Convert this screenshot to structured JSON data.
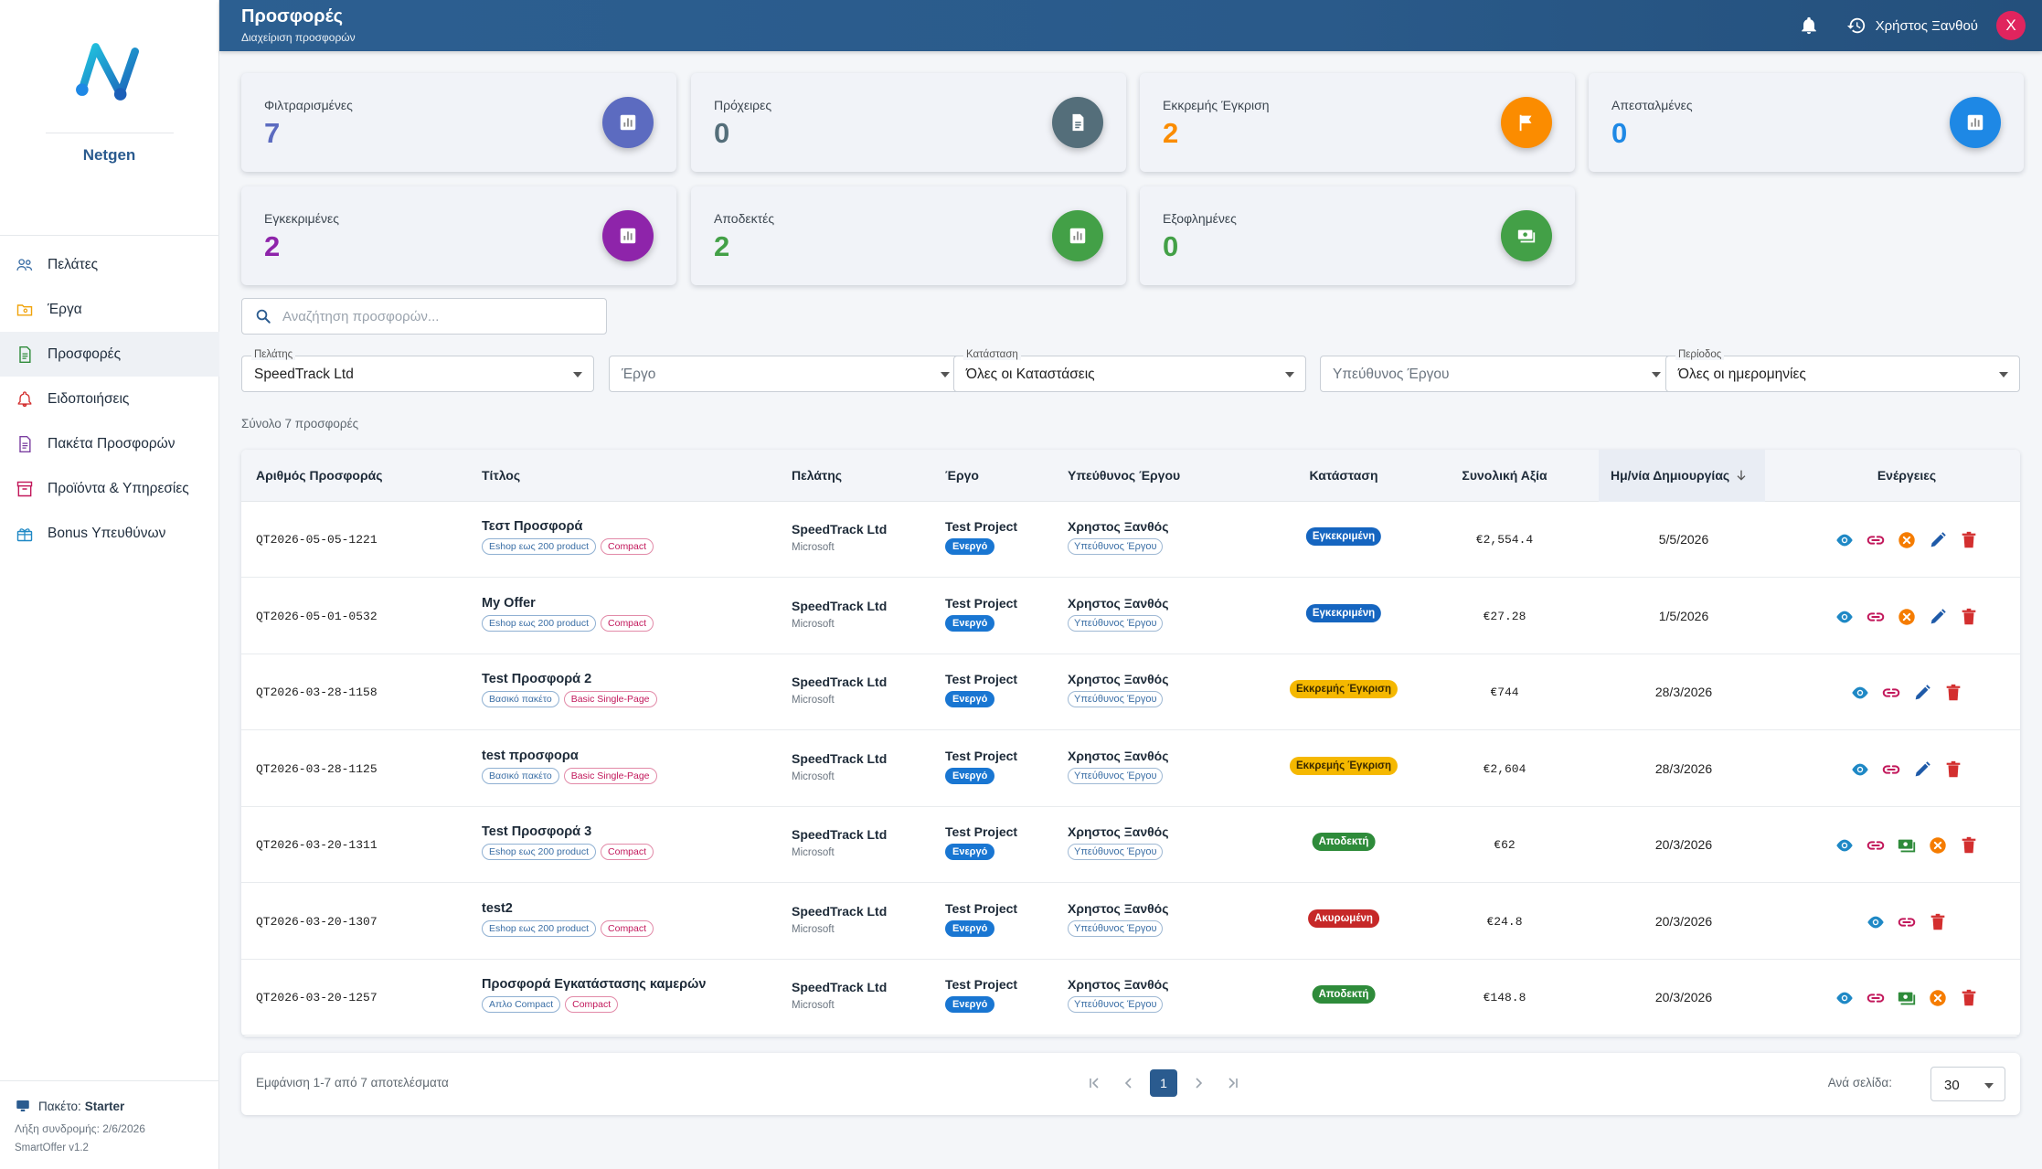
{
  "brand": {
    "name": "Netgen"
  },
  "sidebar": {
    "items": [
      {
        "label": "Πελάτες",
        "icon": "people-icon"
      },
      {
        "label": "Έργα",
        "icon": "folder-icon"
      },
      {
        "label": "Προσφορές",
        "icon": "document-icon"
      },
      {
        "label": "Ειδοποιήσεις",
        "icon": "bell-icon"
      },
      {
        "label": "Πακέτα Προσφορών",
        "icon": "package-doc-icon"
      },
      {
        "label": "Προϊόντα & Υπηρεσίες",
        "icon": "inventory-icon"
      },
      {
        "label": "Bonus Υπευθύνων",
        "icon": "gift-icon"
      }
    ],
    "active_index": 2,
    "package_label": "Πακέτο:",
    "package_value": "Starter",
    "subscription": "Λήξη συνδρομής: 2/6/2026",
    "version": "SmartOffer v1.2"
  },
  "header": {
    "title": "Προσφορές",
    "subtitle": "Διαχείριση προσφορών",
    "user_name": "Χρήστος Ξανθού",
    "avatar_letter": "X"
  },
  "stats": [
    {
      "label": "Φιλτραρισμένες",
      "value": "7",
      "color": "#5c6bc0",
      "icon": "chart-icon"
    },
    {
      "label": "Πρόχειρες",
      "value": "0",
      "color": "#546e7a",
      "icon": "doc-icon"
    },
    {
      "label": "Εκκρεμής Έγκριση",
      "value": "2",
      "color": "#fb8c00",
      "icon": "flag-icon"
    },
    {
      "label": "Απεσταλμένες",
      "value": "0",
      "color": "#1e88e5",
      "icon": "chart-icon"
    },
    {
      "label": "Εγκεκριμένες",
      "value": "2",
      "color": "#8e24aa",
      "icon": "chart-icon"
    },
    {
      "label": "Αποδεκτές",
      "value": "2",
      "color": "#43a047",
      "icon": "chart-icon"
    },
    {
      "label": "Εξοφλημένες",
      "value": "0",
      "color": "#43a047",
      "icon": "money-icon"
    }
  ],
  "search": {
    "placeholder": "Αναζήτηση προσφορών..."
  },
  "filters": [
    {
      "label": "Πελάτης",
      "value": "SpeedTrack Ltd",
      "placeholder": false
    },
    {
      "label": "",
      "value": "Έργο",
      "placeholder": true
    },
    {
      "label": "Κατάσταση",
      "value": "Όλες οι Καταστάσεις",
      "placeholder": false
    },
    {
      "label": "",
      "value": "Υπεύθυνος Έργου",
      "placeholder": true
    },
    {
      "label": "Περίοδος",
      "value": "Όλες οι ημερομηνίες",
      "placeholder": false
    }
  ],
  "total_label": "Σύνολο 7 προσφορές",
  "table": {
    "headers": {
      "number": "Αριθμός Προσφοράς",
      "title": "Τίτλος",
      "customer": "Πελάτης",
      "project": "Έργο",
      "responsible": "Υπεύθυνος Έργου",
      "status": "Κατάσταση",
      "total": "Συνολική Αξία",
      "created": "Ημ/νία Δημιουργίας",
      "actions": "Ενέργειες"
    },
    "rows": [
      {
        "number": "QT2026-05-05-1221",
        "title": "Τεστ Προσφορά",
        "tags": [
          {
            "text": "Eshop εως 200 product",
            "color": "blue"
          },
          {
            "text": "Compact",
            "color": "red"
          }
        ],
        "customer": "SpeedTrack Ltd",
        "customer_sub": "Microsoft",
        "project": "Test Project",
        "project_status": "Ενεργό",
        "responsible": "Χρηστος Ξανθός",
        "responsible_role": "Υπεύθυνος Έργου",
        "status": "Εγκεκριμένη",
        "status_kind": "approved",
        "total": "€2,554.4",
        "created": "5/5/2026",
        "actions": [
          "view",
          "link",
          "cancel",
          "edit",
          "delete"
        ]
      },
      {
        "number": "QT2026-05-01-0532",
        "title": "My Offer",
        "tags": [
          {
            "text": "Eshop εως 200 product",
            "color": "blue"
          },
          {
            "text": "Compact",
            "color": "red"
          }
        ],
        "customer": "SpeedTrack Ltd",
        "customer_sub": "Microsoft",
        "project": "Test Project",
        "project_status": "Ενεργό",
        "responsible": "Χρηστος Ξανθός",
        "responsible_role": "Υπεύθυνος Έργου",
        "status": "Εγκεκριμένη",
        "status_kind": "approved",
        "total": "€27.28",
        "created": "1/5/2026",
        "actions": [
          "view",
          "link",
          "cancel",
          "edit",
          "delete"
        ]
      },
      {
        "number": "QT2026-03-28-1158",
        "title": "Test Προσφορά 2",
        "tags": [
          {
            "text": "Βασικό πακέτο",
            "color": "blue"
          },
          {
            "text": "Basic Single-Page",
            "color": "red"
          }
        ],
        "customer": "SpeedTrack Ltd",
        "customer_sub": "Microsoft",
        "project": "Test Project",
        "project_status": "Ενεργό",
        "responsible": "Χρηστος Ξανθός",
        "responsible_role": "Υπεύθυνος Έργου",
        "status": "Εκκρεμής Έγκριση",
        "status_kind": "pending",
        "total": "€744",
        "created": "28/3/2026",
        "actions": [
          "view",
          "link",
          "edit",
          "delete"
        ]
      },
      {
        "number": "QT2026-03-28-1125",
        "title": "test προσφορα",
        "tags": [
          {
            "text": "Βασικό πακέτο",
            "color": "blue"
          },
          {
            "text": "Basic Single-Page",
            "color": "red"
          }
        ],
        "customer": "SpeedTrack Ltd",
        "customer_sub": "Microsoft",
        "project": "Test Project",
        "project_status": "Ενεργό",
        "responsible": "Χρηστος Ξανθός",
        "responsible_role": "Υπεύθυνος Έργου",
        "status": "Εκκρεμής Έγκριση",
        "status_kind": "pending",
        "total": "€2,604",
        "created": "28/3/2026",
        "actions": [
          "view",
          "link",
          "edit",
          "delete"
        ]
      },
      {
        "number": "QT2026-03-20-1311",
        "title": "Test Προσφορά 3",
        "tags": [
          {
            "text": "Eshop εως 200 product",
            "color": "blue"
          },
          {
            "text": "Compact",
            "color": "red"
          }
        ],
        "customer": "SpeedTrack Ltd",
        "customer_sub": "Microsoft",
        "project": "Test Project",
        "project_status": "Ενεργό",
        "responsible": "Χρηστος Ξανθός",
        "responsible_role": "Υπεύθυνος Έργου",
        "status": "Αποδεκτή",
        "status_kind": "accepted",
        "total": "€62",
        "created": "20/3/2026",
        "actions": [
          "view",
          "link",
          "paid",
          "cancel",
          "delete"
        ]
      },
      {
        "number": "QT2026-03-20-1307",
        "title": "test2",
        "tags": [
          {
            "text": "Eshop εως 200 product",
            "color": "blue"
          },
          {
            "text": "Compact",
            "color": "red"
          }
        ],
        "customer": "SpeedTrack Ltd",
        "customer_sub": "Microsoft",
        "project": "Test Project",
        "project_status": "Ενεργό",
        "responsible": "Χρηστος Ξανθός",
        "responsible_role": "Υπεύθυνος Έργου",
        "status": "Ακυρωμένη",
        "status_kind": "cancelled",
        "total": "€24.8",
        "created": "20/3/2026",
        "actions": [
          "view",
          "link",
          "delete"
        ]
      },
      {
        "number": "QT2026-03-20-1257",
        "title": "Προσφορά Εγκατάστασης καμερών",
        "tags": [
          {
            "text": "Απλο Compact",
            "color": "blue"
          },
          {
            "text": "Compact",
            "color": "red"
          }
        ],
        "customer": "SpeedTrack Ltd",
        "customer_sub": "Microsoft",
        "project": "Test Project",
        "project_status": "Ενεργό",
        "responsible": "Χρηστος Ξανθός",
        "responsible_role": "Υπεύθυνος Έργου",
        "status": "Αποδεκτή",
        "status_kind": "accepted",
        "total": "€148.8",
        "created": "20/3/2026",
        "actions": [
          "view",
          "link",
          "paid",
          "cancel",
          "delete"
        ]
      }
    ]
  },
  "pagination": {
    "info": "Εμφάνιση 1-7 από 7 αποτελέσματα",
    "current_page": "1",
    "per_page_label": "Ανά σελίδα:",
    "per_page_value": "30"
  }
}
